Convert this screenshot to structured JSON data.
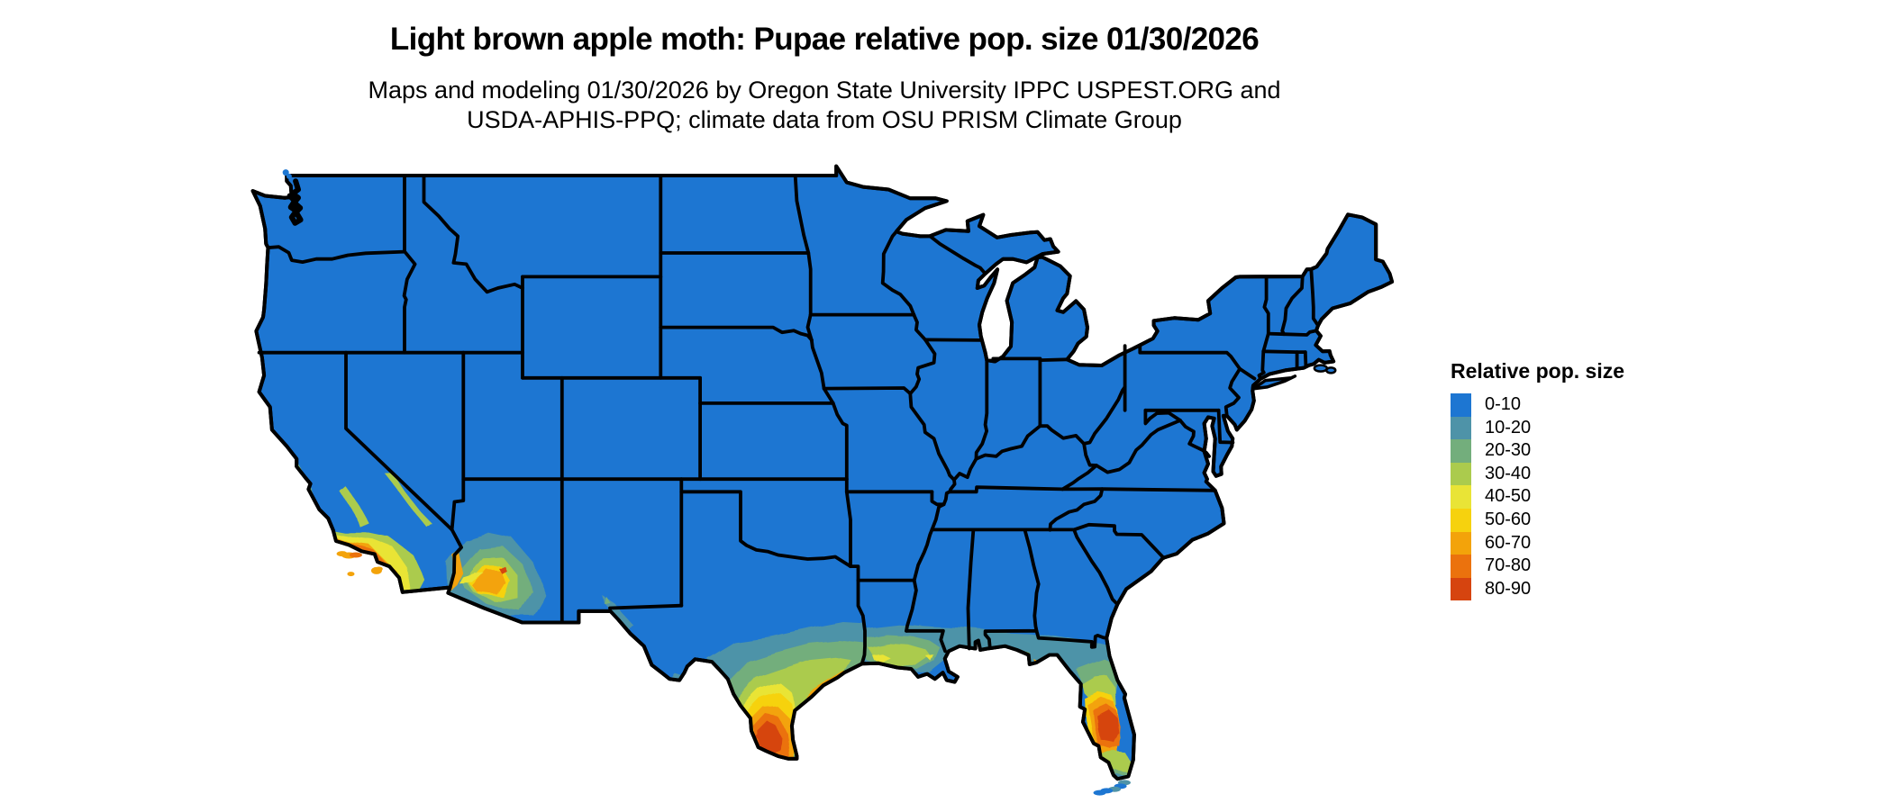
{
  "header": {
    "title": "Light brown apple moth: Pupae relative pop. size 01/30/2026",
    "subtitle_line1": "Maps and modeling 01/30/2026 by Oregon State University IPPC USPEST.ORG and",
    "subtitle_line2": "USDA-APHIS-PPQ; climate data from OSU PRISM Climate Group"
  },
  "legend": {
    "title": "Relative pop. size",
    "items": [
      {
        "label": "0-10",
        "color": "#1d76d2"
      },
      {
        "label": "10-20",
        "color": "#4e93a8"
      },
      {
        "label": "20-30",
        "color": "#73ae7c"
      },
      {
        "label": "30-40",
        "color": "#abcb4d"
      },
      {
        "label": "40-50",
        "color": "#e9e436"
      },
      {
        "label": "50-60",
        "color": "#f6d20e"
      },
      {
        "label": "60-70",
        "color": "#f3a30a"
      },
      {
        "label": "70-80",
        "color": "#eb720d"
      },
      {
        "label": "80-90",
        "color": "#d6440f"
      }
    ]
  },
  "map": {
    "base_color": "#1d76d2",
    "border_color": "#000000",
    "water_color": "#ffffff",
    "hotspots": [
      {
        "region": "Southern California coast and islands",
        "range": "30-80"
      },
      {
        "region": "Southwestern Arizona lowlands",
        "range": "10-70"
      },
      {
        "region": "South Texas / Rio Grande Valley",
        "range": "10-90"
      },
      {
        "region": "Gulf Coast Louisiana to Florida panhandle",
        "range": "10-50"
      },
      {
        "region": "Central Florida peninsula",
        "range": "50-90"
      },
      {
        "region": "Everglades and Florida Keys",
        "range": "0-30"
      }
    ]
  }
}
